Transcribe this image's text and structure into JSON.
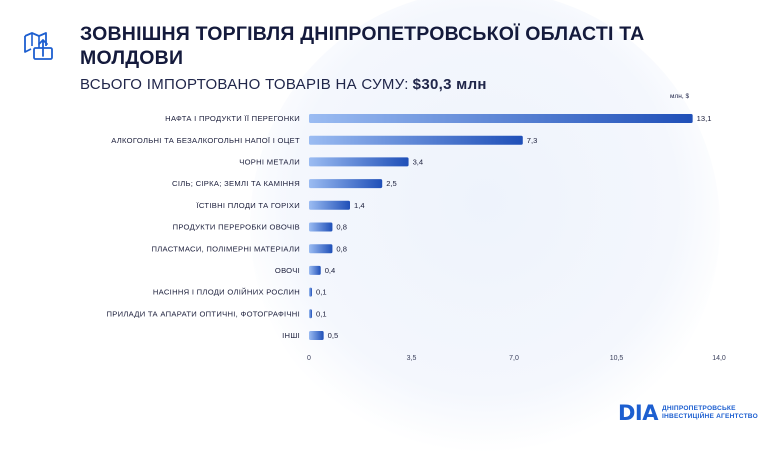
{
  "header": {
    "title": "ЗОВНІШНЯ ТОРГІВЛЯ ДНІПРОПЕТРОВСЬКОЇ ОБЛАСТІ ТА МОЛДОВИ",
    "subtitle_label": "ВСЬОГО ІМПОРТОВАНО ТОВАРІВ НА СУМУ:",
    "subtitle_amount": "$30,3 млн",
    "icon": "map-upload-icon"
  },
  "chart_data": {
    "type": "bar",
    "orientation": "horizontal",
    "unit_label": "млн, $",
    "categories": [
      "НАФТА І ПРОДУКТИ ЇЇ ПЕРЕГОНКИ",
      "АЛКОГОЛЬНІ ТА БЕЗАЛКОГОЛЬНІ НАПОЇ І ОЦЕТ",
      "ЧОРНІ МЕТАЛИ",
      "СІЛЬ; СІРКА; ЗЕМЛІ ТА КАМІННЯ",
      "ЇСТІВНІ ПЛОДИ ТА ГОРІХИ",
      "ПРОДУКТИ ПЕРЕРОБКИ ОВОЧІВ",
      "ПЛАСТМАСИ, ПОЛІМЕРНІ МАТЕРІАЛИ",
      "ОВОЧІ",
      "НАСІННЯ І ПЛОДИ ОЛІЙНИХ РОСЛИН",
      "ПРИЛАДИ ТА АПАРАТИ ОПТИЧНІ, ФОТОГРАФІЧНІ",
      "ІНШІ"
    ],
    "values": [
      13.1,
      7.3,
      3.4,
      2.5,
      1.4,
      0.8,
      0.8,
      0.4,
      0.1,
      0.1,
      0.5
    ],
    "value_labels": [
      "13,1",
      "7,3",
      "3,4",
      "2,5",
      "1,4",
      "0,8",
      "0,8",
      "0,4",
      "0,1",
      "0,1",
      "0,5"
    ],
    "xlim": [
      0,
      14
    ],
    "xticks": [
      0,
      3.5,
      7,
      10.5,
      14
    ],
    "xtick_labels": [
      "0",
      "3,5",
      "7,0",
      "10,5",
      "14,0"
    ],
    "grid": false,
    "bar_colors": {
      "start": "#9bbcf2",
      "end": "#1f4fb8"
    }
  },
  "brand": {
    "mark": "DIA",
    "line1": "ДНІПРОПЕТРОВСЬКЕ",
    "line2": "ІНВЕСТИЦІЙНЕ АГЕНТСТВО"
  }
}
